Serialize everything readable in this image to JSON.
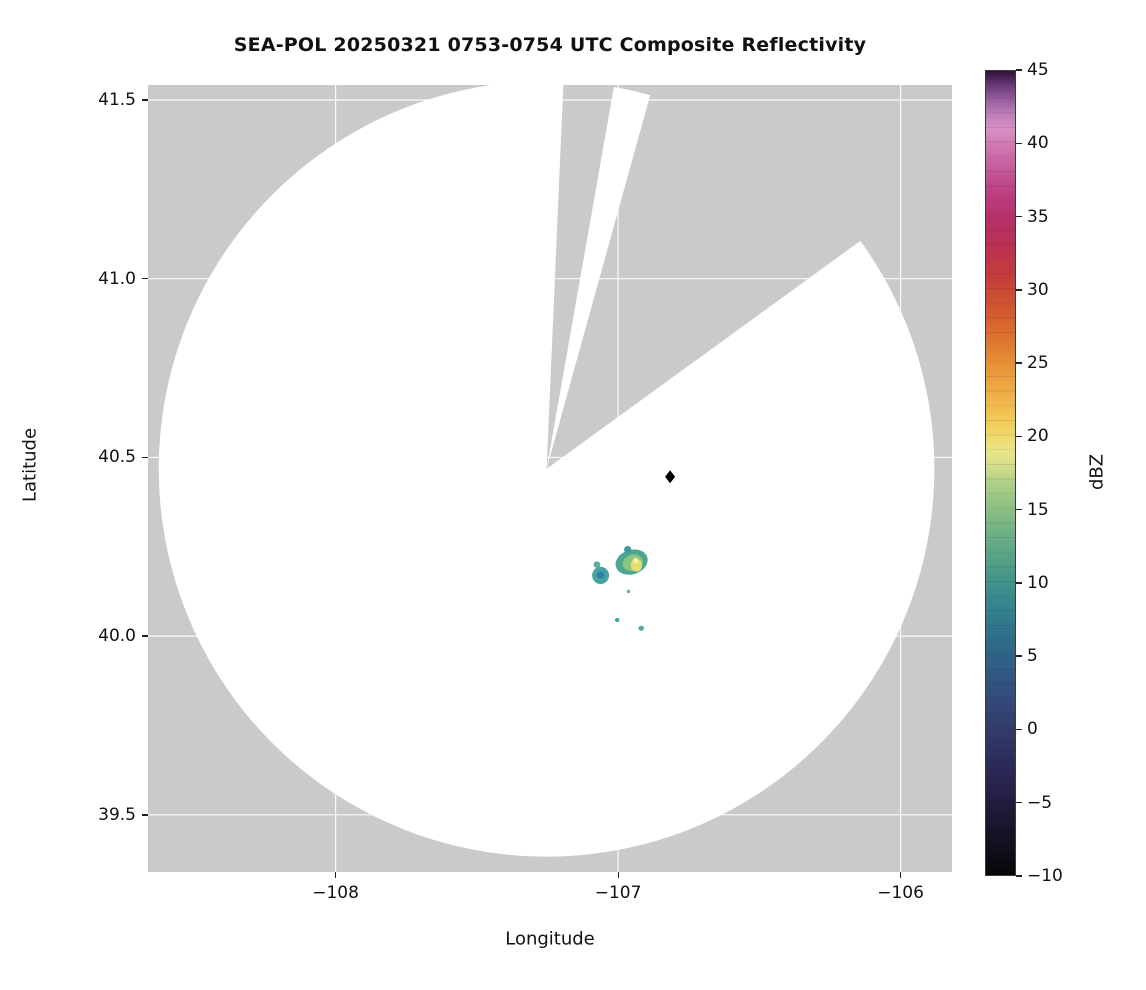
{
  "chart_data": {
    "type": "heatmap",
    "title": "SEA-POL 20250321 0753-0754 UTC Composite Reflectivity",
    "xlabel": "Longitude",
    "ylabel": "Latitude",
    "xlim": [
      -108.664,
      -105.818
    ],
    "ylim": [
      39.34,
      41.542
    ],
    "xticks": [
      -108,
      -107,
      -106
    ],
    "xtick_labels": [
      "−108",
      "−107",
      "−106"
    ],
    "yticks": [
      41.5,
      41.0,
      40.5,
      40.0,
      39.5
    ],
    "ytick_labels": [
      "41.5",
      "41.0",
      "40.5",
      "40.0",
      "39.5"
    ],
    "grid": true,
    "grid_color": "rgba(255,255,255,0.9)",
    "nodata_color": "#cacaca",
    "scanned_color": "#ffffff",
    "radar": {
      "center_lon": -107.253,
      "center_lat": 40.468,
      "range_deg_lat": 1.085,
      "scanned_sectors_deg_az": [
        [
          10,
          15.5
        ],
        [
          54,
          362.5
        ]
      ],
      "blocked_sectors_deg_az": [
        [
          2.5,
          10
        ],
        [
          15.5,
          54
        ]
      ]
    },
    "site_marker": {
      "lon": -106.816,
      "lat": 40.446,
      "shape": "diamond",
      "color": "#000000"
    },
    "echoes": [
      {
        "lon": -107.062,
        "lat": 40.17,
        "rx": 0.03,
        "ry": 0.024,
        "rot": 0,
        "color": "#46a3a0",
        "value_dbz": 8
      },
      {
        "lon": -107.062,
        "lat": 40.171,
        "rx": 0.014,
        "ry": 0.01,
        "rot": 0,
        "color": "#2f7fae",
        "value_dbz": 5
      },
      {
        "lon": -107.075,
        "lat": 40.2,
        "rx": 0.012,
        "ry": 0.009,
        "rot": 0,
        "color": "#57aca4",
        "value_dbz": 8
      },
      {
        "lon": -106.952,
        "lat": 40.207,
        "rx": 0.058,
        "ry": 0.034,
        "rot": -18,
        "color": "#4da692",
        "value_dbz": 9
      },
      {
        "lon": -106.966,
        "lat": 40.242,
        "rx": 0.013,
        "ry": 0.01,
        "rot": 0,
        "color": "#3f9aa0",
        "value_dbz": 7
      },
      {
        "lon": -106.948,
        "lat": 40.205,
        "rx": 0.036,
        "ry": 0.023,
        "rot": -18,
        "color": "#8ac47f",
        "value_dbz": 12
      },
      {
        "lon": -106.935,
        "lat": 40.198,
        "rx": 0.02,
        "ry": 0.018,
        "rot": 0,
        "color": "#e3df6e",
        "value_dbz": 17
      },
      {
        "lon": -106.938,
        "lat": 40.211,
        "rx": 0.009,
        "ry": 0.008,
        "rot": 0,
        "color": "#f4f1a3",
        "value_dbz": 18
      },
      {
        "lon": -106.963,
        "lat": 40.125,
        "rx": 0.006,
        "ry": 0.005,
        "rot": 0,
        "color": "#62b0a8",
        "value_dbz": 7
      },
      {
        "lon": -107.003,
        "lat": 40.045,
        "rx": 0.008,
        "ry": 0.006,
        "rot": 0,
        "color": "#4ba59e",
        "value_dbz": 7
      },
      {
        "lon": -106.918,
        "lat": 40.022,
        "rx": 0.01,
        "ry": 0.007,
        "rot": 0,
        "color": "#55a99f",
        "value_dbz": 8
      }
    ],
    "colorbar": {
      "label": "dBZ",
      "min": -10,
      "max": 45,
      "ticks": [
        45,
        40,
        35,
        30,
        25,
        20,
        15,
        10,
        5,
        0,
        -5,
        -10
      ],
      "tick_labels": [
        "45",
        "40",
        "35",
        "30",
        "25",
        "20",
        "15",
        "10",
        "5",
        "0",
        "−5",
        "−10"
      ],
      "stops": [
        [
          -10,
          "#070707"
        ],
        [
          -8,
          "#140f1e"
        ],
        [
          -6,
          "#1e1834"
        ],
        [
          -4,
          "#27224a"
        ],
        [
          -2,
          "#2d2e5d"
        ],
        [
          0,
          "#323c6b"
        ],
        [
          2,
          "#334a79"
        ],
        [
          4,
          "#305b84"
        ],
        [
          6,
          "#2e6c8a"
        ],
        [
          8,
          "#33808d"
        ],
        [
          10,
          "#41938a"
        ],
        [
          12,
          "#5aa585"
        ],
        [
          14,
          "#79b684"
        ],
        [
          16,
          "#9dc985"
        ],
        [
          17,
          "#b3d287"
        ],
        [
          18,
          "#d5de8c"
        ],
        [
          19,
          "#e9e585"
        ],
        [
          20,
          "#f0d96b"
        ],
        [
          21,
          "#f2cb58"
        ],
        [
          23,
          "#efad45"
        ],
        [
          25,
          "#e78f36"
        ],
        [
          27,
          "#dc6f2f"
        ],
        [
          29,
          "#d05330"
        ],
        [
          31,
          "#c43c3b"
        ],
        [
          33,
          "#bb3153"
        ],
        [
          35,
          "#b62f6b"
        ],
        [
          37,
          "#bd4486"
        ],
        [
          39,
          "#c967a4"
        ],
        [
          40,
          "#d17bb2"
        ],
        [
          41,
          "#d891c5"
        ],
        [
          42,
          "#bd7fba"
        ],
        [
          43,
          "#99609f"
        ],
        [
          44,
          "#6b3a79"
        ],
        [
          45,
          "#2f1038"
        ]
      ]
    }
  }
}
